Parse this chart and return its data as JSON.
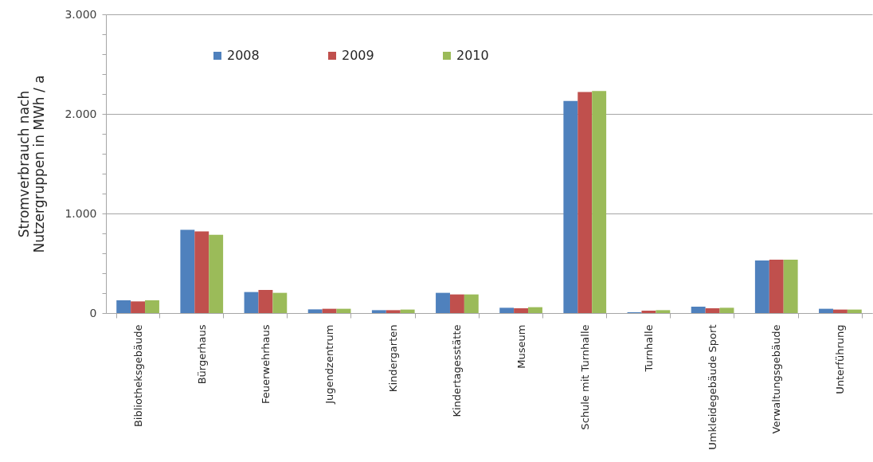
{
  "chart_data": {
    "type": "bar",
    "ylabel": "Stromverbrauch nach Nutzergruppen in MWh / a",
    "categories": [
      "Bibliotheksgebäude",
      "Bürgerhaus",
      "Feuerwehrhaus",
      "Jugendzentrum",
      "Kindergarten",
      "Kindertagesstätte",
      "Museum",
      "Schule mit Turnhalle",
      "Turnhalle",
      "Umkleidegebäude Sport",
      "Verwaltungsgebäude",
      "Unterführung"
    ],
    "series": [
      {
        "name": "2008",
        "color": "#4f81bd",
        "values": [
          128,
          837,
          211,
          37,
          29,
          203,
          53,
          2130,
          8,
          64,
          528,
          43
        ]
      },
      {
        "name": "2009",
        "color": "#c0504d",
        "values": [
          117,
          821,
          232,
          43,
          29,
          187,
          48,
          2220,
          24,
          48,
          536,
          35
        ]
      },
      {
        "name": "2010",
        "color": "#9bbb59",
        "values": [
          128,
          787,
          203,
          43,
          35,
          187,
          59,
          2230,
          29,
          53,
          536,
          35
        ]
      }
    ],
    "ylim": [
      0,
      3000
    ],
    "yticks": [
      0,
      {
        "value": 200,
        "label": null
      },
      {
        "value": 400,
        "label": null
      },
      {
        "value": 600,
        "label": null
      },
      {
        "value": 800,
        "label": null
      },
      {
        "value": 1000,
        "label": "1.000"
      },
      {
        "value": 1200,
        "label": null
      },
      {
        "value": 1400,
        "label": null
      },
      {
        "value": 1600,
        "label": null
      },
      {
        "value": 1800,
        "label": null
      },
      {
        "value": 2000,
        "label": "2.000"
      },
      {
        "value": 2200,
        "label": null
      },
      {
        "value": 2400,
        "label": null
      },
      {
        "value": 2600,
        "label": null
      },
      {
        "value": 2800,
        "label": null
      },
      {
        "value": 3000,
        "label": "3.000"
      }
    ],
    "grid": "y",
    "legend": "top"
  }
}
